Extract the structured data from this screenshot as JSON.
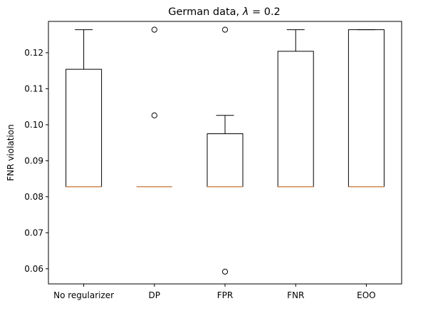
{
  "chart_data": {
    "type": "box",
    "title_prefix": "German data, ",
    "title_symbol": "λ",
    "title_suffix": " =  0.2",
    "xlabel": "",
    "ylabel": "FNR violation",
    "ylim": [
      0.0558,
      0.1287
    ],
    "yticks": [
      0.06,
      0.07,
      0.08,
      0.09,
      0.1,
      0.11,
      0.12
    ],
    "ytick_labels": [
      "0.06",
      "0.07",
      "0.08",
      "0.09",
      "0.10",
      "0.11",
      "0.12"
    ],
    "grid": false,
    "colors": {
      "box": "#000000",
      "median": "#d18a56",
      "outlier_edge": "#000000"
    },
    "categories": [
      "No regularizer",
      "DP",
      "FPR",
      "FNR",
      "EOO"
    ],
    "boxes": [
      {
        "label": "No regularizer",
        "whislo": 0.0828,
        "q1": 0.0828,
        "med": 0.0828,
        "q3": 0.1154,
        "whishi": 0.1264,
        "fliers": []
      },
      {
        "label": "DP",
        "whislo": 0.0828,
        "q1": 0.0828,
        "med": 0.0828,
        "q3": 0.0828,
        "whishi": 0.0828,
        "fliers": [
          0.1264,
          0.1026
        ]
      },
      {
        "label": "FPR",
        "whislo": 0.0828,
        "q1": 0.0828,
        "med": 0.0828,
        "q3": 0.0975,
        "whishi": 0.1026,
        "fliers": [
          0.1264,
          0.0592
        ]
      },
      {
        "label": "FNR",
        "whislo": 0.0828,
        "q1": 0.0828,
        "med": 0.0828,
        "q3": 0.1204,
        "whishi": 0.1264,
        "fliers": []
      },
      {
        "label": "EOO",
        "whislo": 0.0828,
        "q1": 0.0828,
        "med": 0.0828,
        "q3": 0.1264,
        "whishi": 0.1264,
        "fliers": []
      }
    ]
  }
}
